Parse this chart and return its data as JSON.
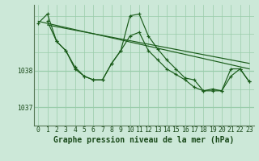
{
  "xlabel": "Graphe pression niveau de la mer (hPa)",
  "background_color": "#cce8d8",
  "plot_bg_color": "#cce8d8",
  "grid_color": "#99ccaa",
  "line_color": "#1a5c1a",
  "yticks": [
    1037,
    1038
  ],
  "ylim": [
    1036.5,
    1039.8
  ],
  "xlim": [
    -0.5,
    23.5
  ],
  "xticks": [
    0,
    1,
    2,
    3,
    4,
    5,
    6,
    7,
    8,
    9,
    10,
    11,
    12,
    13,
    14,
    15,
    16,
    17,
    18,
    19,
    20,
    21,
    22,
    23
  ],
  "series1_x": [
    0,
    1,
    2,
    3,
    4,
    5,
    6,
    7,
    8,
    9,
    10,
    11,
    12,
    13,
    14,
    15,
    16,
    17,
    18,
    19,
    20,
    21,
    22,
    23
  ],
  "series1_y": [
    1039.3,
    1039.55,
    1038.8,
    1038.55,
    1038.05,
    1037.85,
    1037.75,
    1037.75,
    1038.2,
    1038.55,
    1039.5,
    1039.55,
    1038.95,
    1038.6,
    1038.3,
    1038.05,
    1037.8,
    1037.75,
    1037.45,
    1037.5,
    1037.45,
    1038.05,
    1038.05,
    1037.7
  ],
  "series2_x": [
    1,
    2,
    3,
    4,
    5,
    6,
    7,
    8,
    9,
    10,
    11,
    12,
    13,
    14,
    15,
    16,
    17,
    18,
    19,
    20,
    21,
    22,
    23
  ],
  "series2_y": [
    1039.35,
    1038.8,
    1038.55,
    1038.1,
    1037.85,
    1037.75,
    1037.75,
    1038.2,
    1038.55,
    1038.95,
    1039.05,
    1038.55,
    1038.3,
    1038.05,
    1037.9,
    1037.75,
    1037.55,
    1037.45,
    1037.45,
    1037.45,
    1037.85,
    1038.05,
    1037.7
  ],
  "trend1_x": [
    0,
    23
  ],
  "trend1_y": [
    1039.35,
    1038.05
  ],
  "trend2_x": [
    1,
    23
  ],
  "trend2_y": [
    1039.25,
    1038.2
  ],
  "font_color": "#1a4a1a",
  "tick_fontsize": 5.8,
  "label_fontsize": 7.0
}
